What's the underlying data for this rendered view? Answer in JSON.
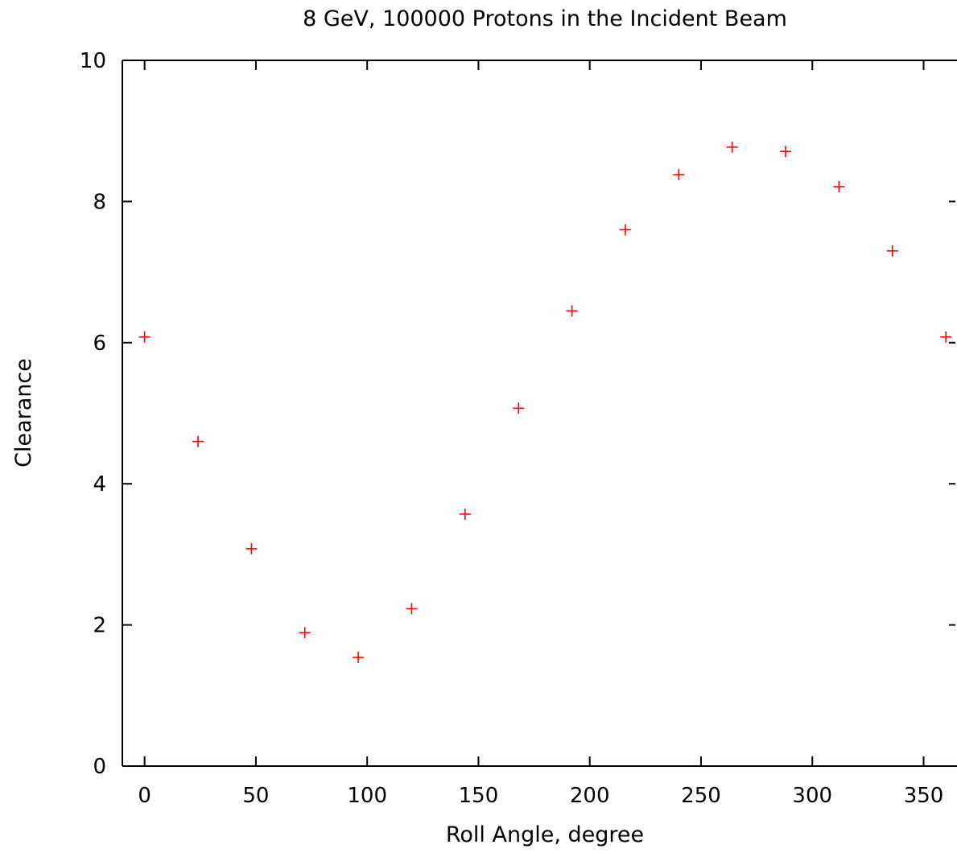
{
  "chart_data": {
    "type": "scatter",
    "title": "8 GeV, 100000 Protons in the Incident Beam",
    "xlabel": "Roll Angle, degree",
    "ylabel": "Clearance",
    "xlim": [
      -10,
      365
    ],
    "ylim": [
      0,
      10
    ],
    "xticks": [
      0,
      50,
      100,
      150,
      200,
      250,
      300,
      350
    ],
    "yticks": [
      0,
      2,
      4,
      6,
      8,
      10
    ],
    "xtick_labels": [
      "0",
      "50",
      "100",
      "150",
      "200",
      "250",
      "300",
      "350"
    ],
    "ytick_labels": [
      "0",
      "2",
      "4",
      "6",
      "8",
      "10"
    ],
    "grid": false,
    "marker": "plus",
    "marker_color": "#ff0000",
    "axis_color": "#000000",
    "series": [
      {
        "x": [
          0,
          24,
          48,
          72,
          96,
          120,
          144,
          168,
          192,
          216,
          240,
          264,
          288,
          312,
          336,
          360
        ],
        "y": [
          6.08,
          4.6,
          3.08,
          1.89,
          1.54,
          2.23,
          3.57,
          5.07,
          6.45,
          7.6,
          8.38,
          8.77,
          8.71,
          8.21,
          7.3,
          6.08
        ]
      }
    ]
  }
}
